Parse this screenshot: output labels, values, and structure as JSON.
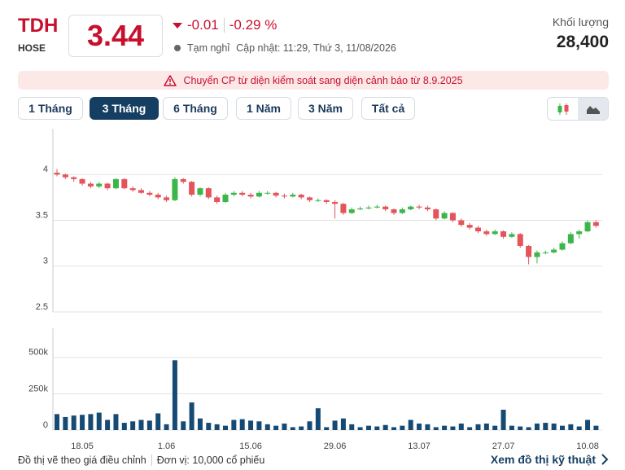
{
  "header": {
    "symbol": "TDH",
    "exchange": "HOSE",
    "price": "3.44",
    "change": "-0.01",
    "change_percent": "-0.29 %",
    "status": "Tạm nghỉ",
    "updated": "Cập nhật: 11:29, Thứ 3, 11/08/2026",
    "volume_label": "Khối lượng",
    "volume": "28,400"
  },
  "alert": "Chuyển CP từ diện kiểm soát sang diện cảnh báo từ 8.9.2025",
  "tabs": [
    "1 Tháng",
    "3 Tháng",
    "6 Tháng",
    "1 Năm",
    "3 Năm",
    "Tất cả"
  ],
  "active_tab": 1,
  "chart_data": [
    {
      "type": "candlestick",
      "up_color": "#3cb54a",
      "down_color": "#e5535b",
      "ylim": [
        2.5,
        4.5
      ],
      "yticks": [
        2.5,
        3,
        3.5,
        4
      ],
      "grid": true,
      "open": [
        4.02,
        4.0,
        3.97,
        3.95,
        3.9,
        3.87,
        3.9,
        3.85,
        3.95,
        3.85,
        3.83,
        3.8,
        3.78,
        3.75,
        3.72,
        3.95,
        3.92,
        3.78,
        3.85,
        3.75,
        3.7,
        3.78,
        3.8,
        3.78,
        3.76,
        3.8,
        3.8,
        3.77,
        3.76,
        3.78,
        3.75,
        3.72,
        3.72,
        3.7,
        3.68,
        3.58,
        3.62,
        3.63,
        3.64,
        3.65,
        3.62,
        3.58,
        3.62,
        3.65,
        3.64,
        3.62,
        3.52,
        3.58,
        3.5,
        3.45,
        3.42,
        3.38,
        3.35,
        3.38,
        3.32,
        3.35,
        3.22,
        3.1,
        3.15,
        3.15,
        3.18,
        3.25,
        3.35,
        3.38,
        3.48
      ],
      "high": [
        4.06,
        4.01,
        3.98,
        3.96,
        3.92,
        3.92,
        3.91,
        3.96,
        3.96,
        3.87,
        3.85,
        3.82,
        3.8,
        3.77,
        3.97,
        3.96,
        3.93,
        3.86,
        3.86,
        3.77,
        3.8,
        3.82,
        3.82,
        3.8,
        3.82,
        3.82,
        3.81,
        3.79,
        3.8,
        3.79,
        3.76,
        3.74,
        3.73,
        3.72,
        3.69,
        3.64,
        3.65,
        3.66,
        3.67,
        3.66,
        3.63,
        3.64,
        3.66,
        3.67,
        3.66,
        3.63,
        3.6,
        3.59,
        3.52,
        3.47,
        3.44,
        3.4,
        3.4,
        3.39,
        3.37,
        3.36,
        3.23,
        3.17,
        3.17,
        3.2,
        3.27,
        3.37,
        3.4,
        3.5,
        3.5
      ],
      "low": [
        3.98,
        3.95,
        3.92,
        3.88,
        3.85,
        3.85,
        3.83,
        3.84,
        3.84,
        3.81,
        3.79,
        3.76,
        3.73,
        3.7,
        3.71,
        3.9,
        3.76,
        3.76,
        3.73,
        3.68,
        3.69,
        3.76,
        3.76,
        3.74,
        3.75,
        3.78,
        3.75,
        3.74,
        3.75,
        3.73,
        3.7,
        3.7,
        3.68,
        3.52,
        3.56,
        3.57,
        3.61,
        3.62,
        3.63,
        3.6,
        3.56,
        3.57,
        3.61,
        3.62,
        3.6,
        3.5,
        3.51,
        3.48,
        3.43,
        3.4,
        3.36,
        3.33,
        3.34,
        3.3,
        3.31,
        3.2,
        3.02,
        3.03,
        3.13,
        3.14,
        3.17,
        3.24,
        3.3,
        3.37,
        3.42
      ],
      "close": [
        4.0,
        3.97,
        3.95,
        3.9,
        3.87,
        3.9,
        3.85,
        3.95,
        3.85,
        3.83,
        3.8,
        3.78,
        3.75,
        3.72,
        3.95,
        3.92,
        3.78,
        3.85,
        3.75,
        3.7,
        3.78,
        3.8,
        3.78,
        3.76,
        3.8,
        3.8,
        3.77,
        3.76,
        3.78,
        3.75,
        3.72,
        3.72,
        3.7,
        3.68,
        3.58,
        3.62,
        3.63,
        3.64,
        3.65,
        3.62,
        3.58,
        3.62,
        3.65,
        3.64,
        3.62,
        3.52,
        3.58,
        3.5,
        3.45,
        3.42,
        3.38,
        3.35,
        3.38,
        3.32,
        3.35,
        3.22,
        3.1,
        3.15,
        3.15,
        3.18,
        3.25,
        3.35,
        3.38,
        3.48,
        3.44
      ]
    },
    {
      "type": "bar",
      "color": "#154a74",
      "ylim": [
        0,
        700000
      ],
      "yticks": [
        0,
        {
          "value": 250000,
          "label": "250k"
        },
        {
          "value": 500000,
          "label": "500k"
        }
      ],
      "grid": true,
      "categories": [
        null,
        null,
        null,
        "18.05",
        null,
        null,
        null,
        null,
        null,
        null,
        null,
        null,
        null,
        "1.06",
        null,
        null,
        null,
        null,
        null,
        null,
        null,
        null,
        null,
        "15.06",
        null,
        null,
        null,
        null,
        null,
        null,
        null,
        null,
        null,
        "29.06",
        null,
        null,
        null,
        null,
        null,
        null,
        null,
        null,
        null,
        "13.07",
        null,
        null,
        null,
        null,
        null,
        null,
        null,
        null,
        null,
        "27.07",
        null,
        null,
        null,
        null,
        null,
        null,
        null,
        null,
        null,
        "10.08",
        null
      ],
      "values": [
        110000,
        90000,
        100000,
        105000,
        110000,
        120000,
        70000,
        110000,
        50000,
        60000,
        70000,
        65000,
        115000,
        40000,
        480000,
        60000,
        190000,
        80000,
        50000,
        40000,
        30000,
        70000,
        75000,
        65000,
        60000,
        40000,
        30000,
        45000,
        20000,
        25000,
        60000,
        150000,
        20000,
        65000,
        80000,
        40000,
        20000,
        30000,
        25000,
        35000,
        20000,
        30000,
        70000,
        45000,
        40000,
        20000,
        30000,
        25000,
        45000,
        20000,
        40000,
        45000,
        30000,
        140000,
        30000,
        25000,
        20000,
        45000,
        50000,
        45000,
        30000,
        40000,
        25000,
        70000,
        30000
      ]
    }
  ],
  "footer": {
    "note": "Đồ thị vẽ theo giá điều chỉnh",
    "unit": "Đơn vị: 10,000 cổ phiếu",
    "link": "Xem đồ thị kỹ thuật"
  }
}
